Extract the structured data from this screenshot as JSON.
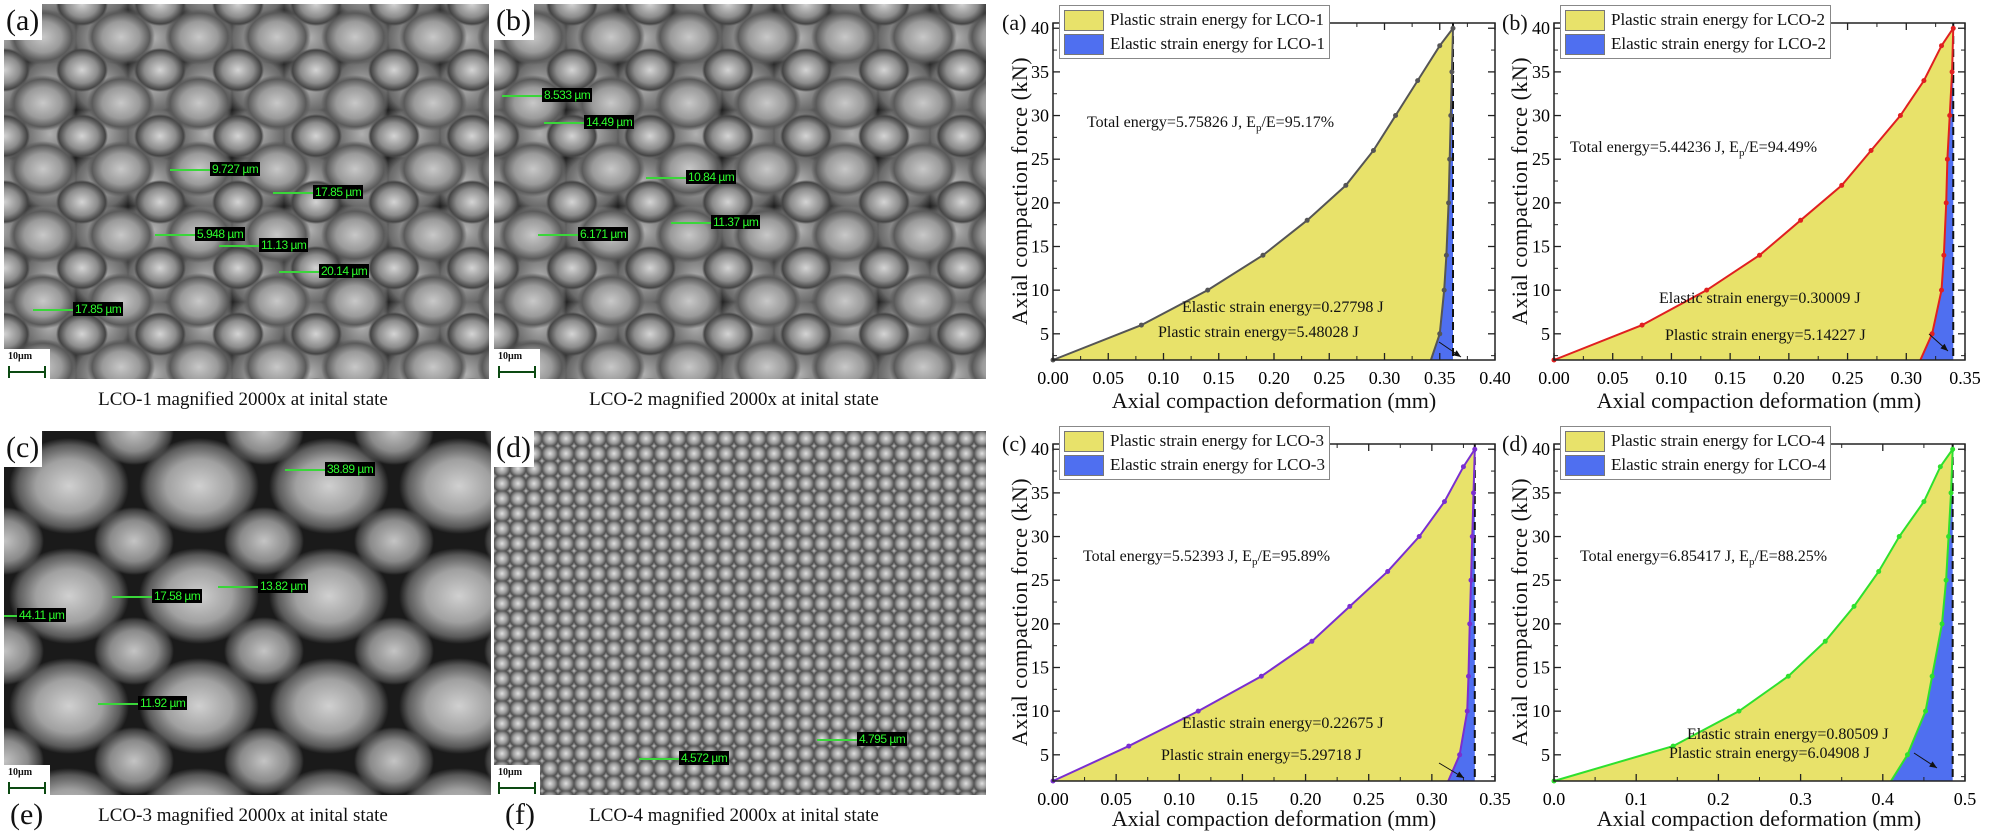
{
  "sem_panels": [
    {
      "label": "(a)",
      "scale": "10µm",
      "measurements": [
        "9.727 µm",
        "17.85 µm",
        "5.948 µm",
        "11.13 µm",
        "20.14 µm",
        "17.85 µm"
      ],
      "caption": "LCO-1 magnified 2000x at inital state"
    },
    {
      "label": "(b)",
      "scale": "10µm",
      "measurements": [
        "8.533 µm",
        "14.49 µm",
        "10.84 µm",
        "6.171 µm",
        "11.37 µm"
      ],
      "caption": "LCO-2 magnified 2000x at inital state"
    },
    {
      "label": "(c)",
      "scale": "10µm",
      "measurements": [
        "38.89 µm",
        "13.82 µm",
        "17.58 µm",
        "44.11 µm",
        "11.92 µm"
      ],
      "caption": "LCO-3 magnified 2000x at inital state",
      "sublabel": "(e)"
    },
    {
      "label": "(d)",
      "scale": "10µm",
      "measurements": [
        "4.572 µm",
        "4.795 µm"
      ],
      "caption": "LCO-4 magnified 2000x at inital state",
      "sublabel": "(f)"
    }
  ],
  "labels": {
    "total": "Total energy=",
    "E": "E",
    "p": "p",
    "ratio": "/E=",
    "elastic": "Elastic strain energy=",
    "plastic": "Plastic strain energy="
  },
  "colors": {
    "plastic": "#e8e26a",
    "elastic": "#4f6ff0"
  },
  "chart_data": [
    {
      "type": "area",
      "panel": "(a)",
      "sample": "LCO-1",
      "line_color": "#555555",
      "xlabel": "Axial compaction deformation (mm)",
      "ylabel": "Axial compaction force (kN)",
      "xlim": [
        0,
        0.4
      ],
      "ylim": [
        2,
        40.6
      ],
      "xticks": [
        "0.00",
        "0.05",
        "0.10",
        "0.15",
        "0.20",
        "0.25",
        "0.30",
        "0.35",
        "0.40"
      ],
      "yticks": [
        "5",
        "10",
        "15",
        "20",
        "25",
        "30",
        "35",
        "40"
      ],
      "legend": [
        "Plastic strain energy for LCO-1",
        "Elastic strain energy for LCO-1"
      ],
      "legend_position": "top-left",
      "loading": {
        "x": [
          0,
          0.08,
          0.14,
          0.19,
          0.23,
          0.265,
          0.29,
          0.31,
          0.33,
          0.35,
          0.362
        ],
        "y": [
          2,
          6,
          10,
          14,
          18,
          22,
          26,
          30,
          34,
          38,
          40
        ]
      },
      "unloading": {
        "x": [
          0.362,
          0.361,
          0.36,
          0.359,
          0.358,
          0.356,
          0.354,
          0.35,
          0.342
        ],
        "y": [
          40,
          35,
          30,
          25,
          20,
          14,
          10,
          5,
          2
        ]
      },
      "total_energy": "5.75826 J",
      "ep_ratio": "95.17%",
      "elastic_energy": "0.27798 J",
      "plastic_energy": "5.48028 J"
    },
    {
      "type": "area",
      "panel": "(b)",
      "sample": "LCO-2",
      "line_color": "#e02020",
      "xlabel": "Axial compaction deformation (mm)",
      "ylabel": "Axial compaction force (kN)",
      "xlim": [
        0,
        0.35
      ],
      "ylim": [
        2,
        40.6
      ],
      "xticks": [
        "0.00",
        "0.05",
        "0.10",
        "0.15",
        "0.20",
        "0.25",
        "0.30",
        "0.35"
      ],
      "yticks": [
        "5",
        "10",
        "15",
        "20",
        "25",
        "30",
        "35",
        "40"
      ],
      "legend": [
        "Plastic strain energy for LCO-2",
        "Elastic strain energy for LCO-2"
      ],
      "legend_position": "top-left",
      "loading": {
        "x": [
          0,
          0.075,
          0.13,
          0.175,
          0.21,
          0.245,
          0.27,
          0.295,
          0.315,
          0.33,
          0.34
        ],
        "y": [
          2,
          6,
          10,
          14,
          18,
          22,
          26,
          30,
          34,
          38,
          40
        ]
      },
      "unloading": {
        "x": [
          0.34,
          0.339,
          0.337,
          0.335,
          0.334,
          0.332,
          0.33,
          0.322,
          0.312
        ],
        "y": [
          40,
          35,
          30,
          25,
          20,
          14,
          10,
          5,
          2
        ]
      },
      "total_energy": "5.44236 J",
      "ep_ratio": "94.49%",
      "elastic_energy": "0.30009 J",
      "plastic_energy": "5.14227 J"
    },
    {
      "type": "area",
      "panel": "(c)",
      "sample": "LCO-3",
      "line_color": "#7a2fd0",
      "xlabel": "Axial compaction deformation (mm)",
      "ylabel": "Axial compaction force (kN)",
      "xlim": [
        0,
        0.35
      ],
      "ylim": [
        2,
        40.6
      ],
      "xticks": [
        "0.00",
        "0.05",
        "0.10",
        "0.15",
        "0.20",
        "0.25",
        "0.30",
        "0.35"
      ],
      "yticks": [
        "5",
        "10",
        "15",
        "20",
        "25",
        "30",
        "35",
        "40"
      ],
      "legend": [
        "Plastic strain energy for LCO-3",
        "Elastic strain energy for LCO-3"
      ],
      "legend_position": "top-left",
      "loading": {
        "x": [
          0,
          0.06,
          0.115,
          0.165,
          0.205,
          0.235,
          0.265,
          0.29,
          0.31,
          0.325,
          0.334
        ],
        "y": [
          2,
          6,
          10,
          14,
          18,
          22,
          26,
          30,
          34,
          38,
          40
        ]
      },
      "unloading": {
        "x": [
          0.334,
          0.333,
          0.332,
          0.331,
          0.33,
          0.329,
          0.328,
          0.322,
          0.313
        ],
        "y": [
          40,
          35,
          30,
          25,
          20,
          14,
          10,
          5,
          2
        ]
      },
      "total_energy": "5.52393 J",
      "ep_ratio": "95.89%",
      "elastic_energy": "0.22675 J",
      "plastic_energy": "5.29718 J"
    },
    {
      "type": "area",
      "panel": "(d)",
      "sample": "LCO-4",
      "line_color": "#2ee02e",
      "xlabel": "Axial compaction deformation (mm)",
      "ylabel": "Axial compaction force (kN)",
      "xlim": [
        0,
        0.5
      ],
      "ylim": [
        2,
        40.6
      ],
      "xticks": [
        "0.0",
        "0.1",
        "0.2",
        "0.3",
        "0.4",
        "0.5"
      ],
      "yticks": [
        "5",
        "10",
        "15",
        "20",
        "25",
        "30",
        "35",
        "40"
      ],
      "legend": [
        "Plastic strain energy for LCO-4",
        "Elastic strain energy for LCO-4"
      ],
      "legend_position": "top-left",
      "loading": {
        "x": [
          0,
          0.145,
          0.225,
          0.285,
          0.33,
          0.365,
          0.395,
          0.42,
          0.45,
          0.47,
          0.485
        ],
        "y": [
          2,
          6,
          10,
          14,
          18,
          22,
          26,
          30,
          34,
          38,
          40
        ]
      },
      "unloading": {
        "x": [
          0.485,
          0.483,
          0.48,
          0.477,
          0.472,
          0.46,
          0.452,
          0.43,
          0.41
        ],
        "y": [
          40,
          35,
          30,
          25,
          20,
          14,
          10,
          5,
          2
        ]
      },
      "total_energy": "6.85417 J",
      "ep_ratio": "88.25%",
      "elastic_energy": "0.80509 J",
      "plastic_energy": "6.04908 J"
    }
  ]
}
